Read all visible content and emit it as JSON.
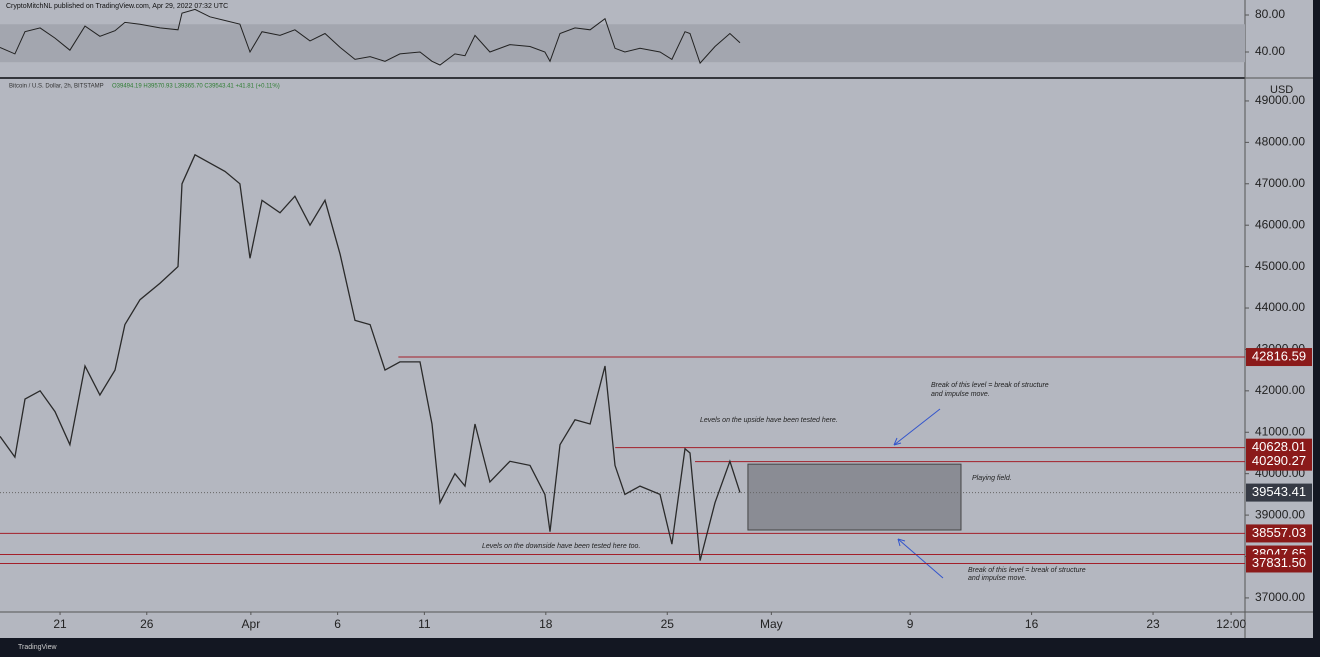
{
  "header": {
    "publisher": "CryptoMitchNL published on TradingView.com, Apr 29, 2022 07:32 UTC",
    "symbol": "Bitcoin / U.S. Dollar, 2h, BITSTAMP",
    "ohlc": "O39494.19 H39570.93 L39365.70 C39543.41 +41.81 (+0.11%)",
    "currency": "USD",
    "footer": "TradingView"
  },
  "chart_data": {
    "type": "line",
    "color": "#2a2a2a",
    "x": [
      76.54,
      77.4,
      77.98,
      78.85,
      79.71,
      80.57,
      81.44,
      82.3,
      83.17,
      83.74,
      84.61,
      85.76,
      86.8,
      87.03,
      87.78,
      88.64,
      89.51,
      90.37,
      90.95,
      91.64,
      92.68,
      93.54,
      94.41,
      95.27,
      96.14,
      97.0,
      97.87,
      98.73,
      99.59,
      100.75,
      101.44,
      101.9,
      102.76,
      103.34,
      103.92,
      104.78,
      105.93,
      107.09,
      107.95,
      108.24,
      108.82,
      109.68,
      110.55,
      111.41,
      111.99,
      112.56,
      113.43,
      114.58,
      115.27,
      116.02,
      116.31,
      116.89,
      117.75,
      118.61,
      119.19
    ],
    "values": [
      40900,
      40400,
      41800,
      42000,
      41500,
      40700,
      42600,
      41900,
      42500,
      43600,
      44200,
      44600,
      45000,
      47000,
      47700,
      47500,
      47300,
      47000,
      45200,
      46600,
      46300,
      46700,
      46000,
      46600,
      45300,
      43700,
      43600,
      42500,
      42700,
      42700,
      41200,
      39300,
      40000,
      39700,
      41200,
      39800,
      40300,
      40200,
      39500,
      38600,
      40700,
      41300,
      41200,
      42600,
      40200,
      39500,
      39700,
      39500,
      38300,
      40600,
      40500,
      37900,
      39300,
      40300,
      39543.41
    ],
    "xlim": [
      76.54,
      148.3
    ],
    "xticks": [
      {
        "value": 80,
        "label": "21"
      },
      {
        "value": 85,
        "label": "26"
      },
      {
        "value": 91,
        "label": "Apr"
      },
      {
        "value": 96,
        "label": "6"
      },
      {
        "value": 101,
        "label": "11"
      },
      {
        "value": 108,
        "label": "18"
      },
      {
        "value": 115,
        "label": "25"
      },
      {
        "value": 121,
        "label": "May"
      },
      {
        "value": 129,
        "label": "9"
      },
      {
        "value": 136,
        "label": "16"
      },
      {
        "value": 143,
        "label": "23"
      },
      {
        "value": 147.5,
        "label": "12:00"
      }
    ],
    "ylim": [
      36660,
      49530
    ],
    "yticks": [
      {
        "value": 37000,
        "label": "37000.00"
      },
      {
        "value": 38000,
        "label": "38000.00"
      },
      {
        "value": 39000,
        "label": "39000.00"
      },
      {
        "value": 40000,
        "label": "40000.00"
      },
      {
        "value": 41000,
        "label": "41000.00"
      },
      {
        "value": 42000,
        "label": "42000.00"
      },
      {
        "value": 43000,
        "label": "43000.00"
      },
      {
        "value": 44000,
        "label": "44000.00"
      },
      {
        "value": 45000,
        "label": "45000.00"
      },
      {
        "value": 46000,
        "label": "46000.00"
      },
      {
        "value": 47000,
        "label": "47000.00"
      },
      {
        "value": 48000,
        "label": "48000.00"
      },
      {
        "value": 49000,
        "label": "49000.00"
      }
    ],
    "levels": [
      {
        "value": 42816.59,
        "start": 99.5
      },
      {
        "value": 40628.01,
        "start": 112
      },
      {
        "value": 40290.27,
        "start": 116.6
      },
      {
        "value": 38557.03,
        "start": 76.54
      },
      {
        "value": 38047.65,
        "start": 76.54
      },
      {
        "value": 37831.5,
        "label": "37831.50",
        "start": 76.54
      }
    ],
    "last_price": 39543.41,
    "zone": {
      "x": [
        119.65,
        131.93
      ],
      "y": [
        38640,
        40230
      ]
    },
    "rsi": {
      "values": [
        45,
        38,
        62,
        66,
        55,
        42,
        68,
        57,
        63,
        72,
        70,
        66,
        64,
        82,
        86,
        78,
        74,
        70,
        40,
        62,
        58,
        64,
        52,
        60,
        45,
        32,
        35,
        30,
        38,
        40,
        30,
        26,
        38,
        36,
        58,
        40,
        48,
        46,
        40,
        30,
        60,
        66,
        64,
        76,
        44,
        40,
        44,
        40,
        32,
        62,
        60,
        28,
        46,
        60,
        50
      ],
      "ylim": [
        13,
        96.2
      ],
      "yticks": [
        {
          "value": 40,
          "label": "40.00"
        },
        {
          "value": 80,
          "label": "80.00"
        }
      ],
      "band": [
        29,
        70
      ]
    },
    "annotations": [
      "Break of this level = break of structure",
      "and impulse move.",
      "Levels on the upside have been tested here.",
      "Playing field.",
      "Levels on the downside have been tested here too.",
      "Break of this level = break of structure",
      "and impulse move."
    ]
  }
}
